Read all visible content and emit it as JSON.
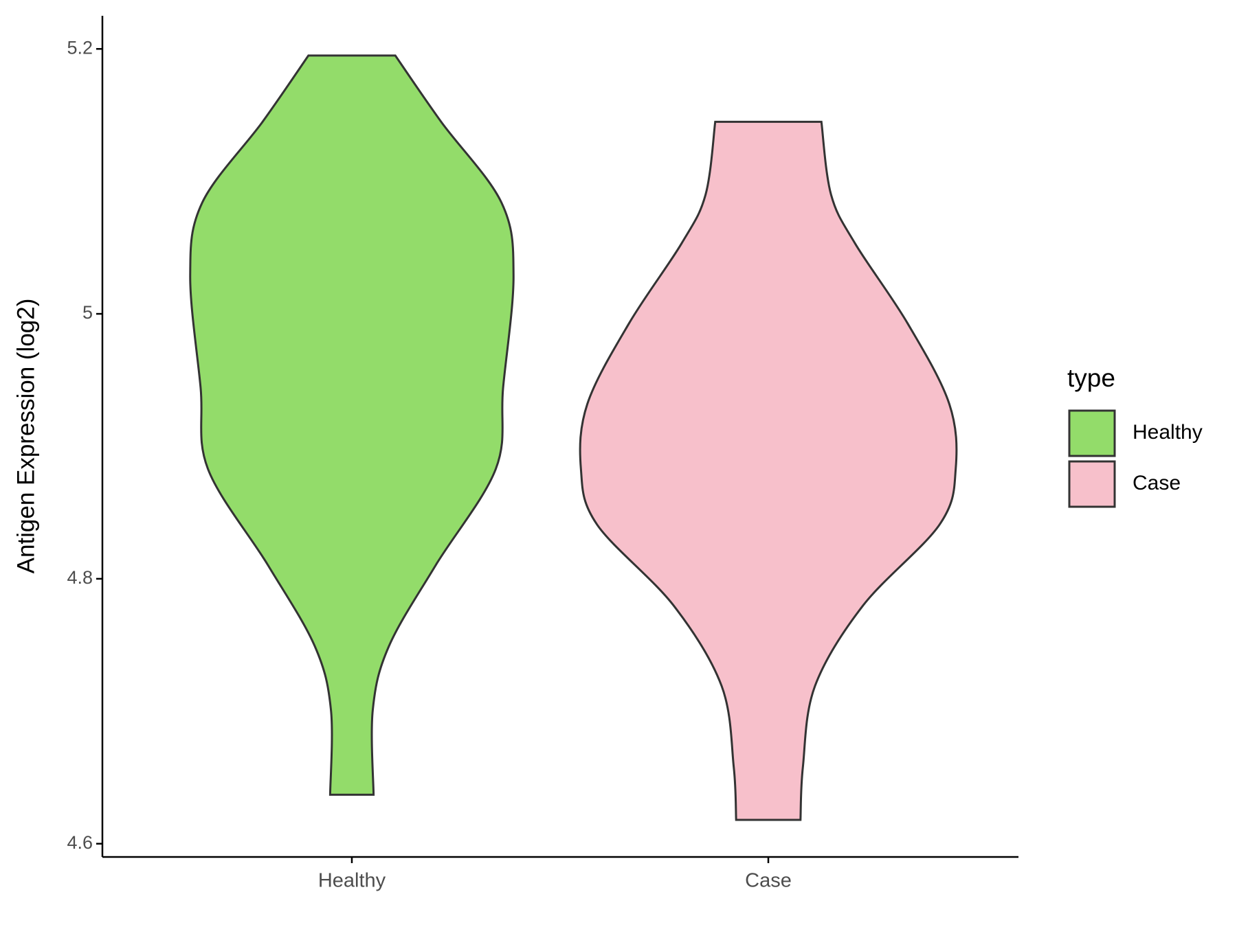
{
  "chart_data": {
    "type": "violin",
    "y_label": "Antigen Expression (log2)",
    "categories": [
      "Healthy",
      "Case"
    ],
    "legend_title": "type",
    "ylim": [
      4.59,
      5.225
    ],
    "yticks": [
      4.6,
      4.8,
      5.0,
      5.2
    ],
    "series": [
      {
        "name": "Healthy",
        "color": "#93dc6a",
        "values": [
          5.195,
          5.145,
          5.084,
          5.029,
          4.944,
          4.883,
          4.81,
          4.749,
          4.701,
          4.637
        ],
        "density": [
          0.54,
          1.11,
          1.86,
          2.01,
          1.88,
          1.79,
          1.04,
          0.46,
          0.26,
          0.27
        ]
      },
      {
        "name": "Case",
        "color": "#f7c0cb",
        "values": [
          5.145,
          5.09,
          5.053,
          4.993,
          4.932,
          4.883,
          4.841,
          4.78,
          4.719,
          4.658,
          4.618
        ],
        "density": [
          0.66,
          0.78,
          1.08,
          1.73,
          2.25,
          2.33,
          2.13,
          1.18,
          0.58,
          0.43,
          0.4
        ]
      }
    ]
  }
}
